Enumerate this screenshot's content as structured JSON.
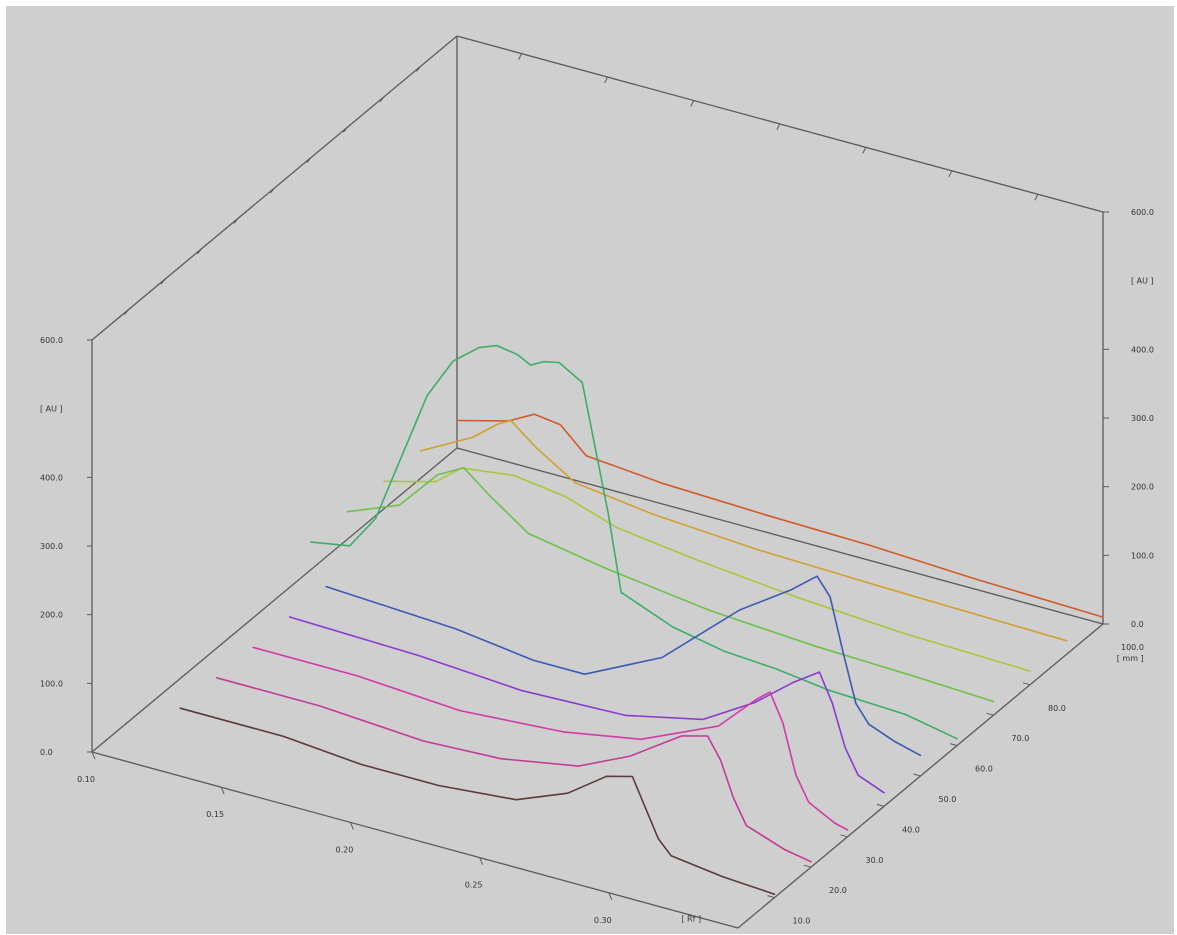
{
  "chart_data": {
    "type": "line",
    "title": "",
    "projection": "3d-waterfall",
    "x_axis": {
      "label": "[ Rf ]",
      "range": [
        0.1,
        0.35
      ],
      "ticks": [
        "0.10",
        "0.15",
        "0.20",
        "0.25",
        "0.30"
      ]
    },
    "y_axis": {
      "label": "[ AU ]",
      "range": [
        0,
        600
      ],
      "ticks_left": [
        "0.0",
        "100.0",
        "200.0",
        "300.0",
        "400.0",
        "600.0"
      ],
      "ticks_right": [
        "0.0",
        "100.0",
        "200.0",
        "300.0",
        "400.0",
        "600.0"
      ]
    },
    "z_axis": {
      "label": "[ mm ]",
      "range": [
        0,
        100
      ],
      "ticks": [
        "10.0",
        "20.0",
        "30.0",
        "40.0",
        "50.0",
        "60.0",
        "70.0",
        "80.0",
        "100.0"
      ]
    },
    "grid": false,
    "legend": "none",
    "series": [
      {
        "z": 10,
        "color": "#5a3a3a",
        "points": [
          [
            0.12,
            40
          ],
          [
            0.16,
            40
          ],
          [
            0.19,
            30
          ],
          [
            0.22,
            30
          ],
          [
            0.25,
            40
          ],
          [
            0.27,
            70
          ],
          [
            0.285,
            110
          ],
          [
            0.295,
            120
          ],
          [
            0.3,
            80
          ],
          [
            0.305,
            40
          ],
          [
            0.31,
            20
          ],
          [
            0.33,
            10
          ],
          [
            0.35,
            5
          ]
        ]
      },
      {
        "z": 20,
        "color": "#c43a9a",
        "points": [
          [
            0.12,
            40
          ],
          [
            0.16,
            40
          ],
          [
            0.2,
            30
          ],
          [
            0.23,
            35
          ],
          [
            0.26,
            55
          ],
          [
            0.28,
            90
          ],
          [
            0.3,
            140
          ],
          [
            0.31,
            150
          ],
          [
            0.315,
            120
          ],
          [
            0.32,
            70
          ],
          [
            0.325,
            35
          ],
          [
            0.34,
            15
          ],
          [
            0.35,
            8
          ]
        ]
      },
      {
        "z": 30,
        "color": "#d23aa8",
        "points": [
          [
            0.12,
            40
          ],
          [
            0.16,
            40
          ],
          [
            0.2,
            30
          ],
          [
            0.24,
            40
          ],
          [
            0.27,
            60
          ],
          [
            0.3,
            110
          ],
          [
            0.315,
            165
          ],
          [
            0.32,
            180
          ],
          [
            0.325,
            140
          ],
          [
            0.33,
            70
          ],
          [
            0.335,
            35
          ],
          [
            0.345,
            15
          ],
          [
            0.35,
            10
          ]
        ]
      },
      {
        "z": 40,
        "color": "#8a3ad2",
        "points": [
          [
            0.12,
            40
          ],
          [
            0.17,
            35
          ],
          [
            0.21,
            25
          ],
          [
            0.25,
            30
          ],
          [
            0.28,
            55
          ],
          [
            0.3,
            100
          ],
          [
            0.315,
            145
          ],
          [
            0.325,
            170
          ],
          [
            0.33,
            130
          ],
          [
            0.335,
            70
          ],
          [
            0.34,
            35
          ],
          [
            0.35,
            20
          ]
        ]
      },
      {
        "z": 50,
        "color": "#3a5ab4",
        "points": [
          [
            0.12,
            40
          ],
          [
            0.17,
            30
          ],
          [
            0.2,
            15
          ],
          [
            0.22,
            15
          ],
          [
            0.25,
            70
          ],
          [
            0.28,
            170
          ],
          [
            0.3,
            220
          ],
          [
            0.31,
            250
          ],
          [
            0.315,
            225
          ],
          [
            0.32,
            150
          ],
          [
            0.325,
            80
          ],
          [
            0.33,
            55
          ],
          [
            0.34,
            40
          ],
          [
            0.35,
            30
          ]
        ]
      },
      {
        "z": 60,
        "color": "#3cae6a",
        "points": [
          [
            0.1,
            40
          ],
          [
            0.115,
            50
          ],
          [
            0.125,
            100
          ],
          [
            0.135,
            200
          ],
          [
            0.145,
            300
          ],
          [
            0.155,
            360
          ],
          [
            0.165,
            390
          ],
          [
            0.172,
            400
          ],
          [
            0.18,
            395
          ],
          [
            0.185,
            385
          ],
          [
            0.19,
            395
          ],
          [
            0.196,
            400
          ],
          [
            0.205,
            380
          ],
          [
            0.215,
            200
          ],
          [
            0.22,
            90
          ],
          [
            0.24,
            60
          ],
          [
            0.26,
            45
          ],
          [
            0.28,
            40
          ],
          [
            0.3,
            30
          ],
          [
            0.33,
            25
          ],
          [
            0.35,
            10
          ]
        ]
      },
      {
        "z": 70,
        "color": "#6cc24a",
        "points": [
          [
            0.1,
            40
          ],
          [
            0.12,
            70
          ],
          [
            0.135,
            130
          ],
          [
            0.145,
            150
          ],
          [
            0.155,
            120
          ],
          [
            0.17,
            80
          ],
          [
            0.2,
            60
          ],
          [
            0.24,
            40
          ],
          [
            0.28,
            30
          ],
          [
            0.32,
            25
          ],
          [
            0.35,
            20
          ]
        ]
      },
      {
        "z": 80,
        "color": "#a8c83c",
        "points": [
          [
            0.1,
            40
          ],
          [
            0.12,
            60
          ],
          [
            0.13,
            90
          ],
          [
            0.15,
            100
          ],
          [
            0.17,
            90
          ],
          [
            0.19,
            65
          ],
          [
            0.22,
            50
          ],
          [
            0.26,
            35
          ],
          [
            0.3,
            25
          ],
          [
            0.35,
            20
          ]
        ]
      },
      {
        "z": 90,
        "color": "#d2a030",
        "points": [
          [
            0.1,
            40
          ],
          [
            0.12,
            80
          ],
          [
            0.13,
            110
          ],
          [
            0.135,
            120
          ],
          [
            0.145,
            90
          ],
          [
            0.16,
            55
          ],
          [
            0.19,
            40
          ],
          [
            0.23,
            30
          ],
          [
            0.28,
            25
          ],
          [
            0.35,
            20
          ]
        ]
      },
      {
        "z": 100,
        "color": "#d25a2a",
        "points": [
          [
            0.1,
            40
          ],
          [
            0.12,
            60
          ],
          [
            0.13,
            80
          ],
          [
            0.14,
            75
          ],
          [
            0.15,
            40
          ],
          [
            0.18,
            30
          ],
          [
            0.22,
            25
          ],
          [
            0.26,
            22
          ],
          [
            0.3,
            15
          ],
          [
            0.35,
            10
          ]
        ]
      }
    ]
  }
}
